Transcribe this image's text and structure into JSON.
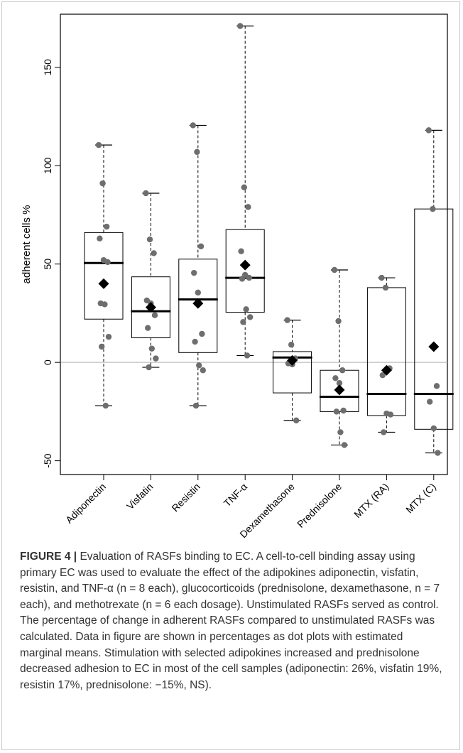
{
  "chart_data": {
    "type": "box",
    "ylabel": "adherent cells %",
    "ylim": [
      -57,
      177
    ],
    "yticks": [
      -50,
      0,
      50,
      100,
      150
    ],
    "reference_line": 0,
    "colors": {
      "point": "#6e6e6e",
      "mean": "#000000",
      "box": "#000000",
      "reference": "#bdbdbd"
    },
    "categories": [
      "Adiponectin",
      "Visfatin",
      "Resistin",
      "TNF-α",
      "Dexamethasone",
      "Prednisolone",
      "MTX (RA)",
      "MTX (C)"
    ],
    "boxes": [
      {
        "category": "Adiponectin",
        "whisker_low": -22,
        "q1": 22,
        "median": 50.5,
        "q3": 66,
        "whisker_high": 110.5,
        "mean": 40,
        "points": [
          110.5,
          91,
          69,
          63,
          52,
          51,
          30,
          29.5,
          13,
          8,
          -22
        ]
      },
      {
        "category": "Visfatin",
        "whisker_low": -2.5,
        "q1": 12.5,
        "median": 26,
        "q3": 43.5,
        "whisker_high": 86,
        "mean": 28,
        "points": [
          86,
          62.5,
          55.5,
          31.5,
          30,
          24,
          17.5,
          7,
          2,
          -2.5
        ]
      },
      {
        "category": "Resistin",
        "whisker_low": -22,
        "q1": 5,
        "median": 32,
        "q3": 52.5,
        "whisker_high": 120.5,
        "mean": 30,
        "points": [
          120.5,
          107,
          59,
          45.5,
          35.5,
          14.5,
          10.5,
          -1.5,
          -4,
          -22
        ]
      },
      {
        "category": "TNF-α",
        "whisker_low": 3.5,
        "q1": 25.5,
        "median": 43,
        "q3": 67.5,
        "whisker_high": 171,
        "mean": 49.5,
        "points": [
          171,
          89,
          79,
          56.5,
          44.5,
          43,
          42.5,
          27,
          23,
          20.5,
          3.5
        ]
      },
      {
        "category": "Dexamethasone",
        "whisker_low": -29.5,
        "q1": -15.5,
        "median": 2.5,
        "q3": 5.5,
        "whisker_high": 21.5,
        "mean": 1,
        "points": [
          21.5,
          9,
          2,
          -0.5,
          -1,
          -29.5
        ]
      },
      {
        "category": "Prednisolone",
        "whisker_low": -42,
        "q1": -25,
        "median": -17.5,
        "q3": -4,
        "whisker_high": 47,
        "mean": -14,
        "points": [
          47,
          21,
          -4,
          -8,
          -10.5,
          -24.5,
          -25,
          -35.5,
          -42
        ]
      },
      {
        "category": "MTX (RA)",
        "whisker_low": -35.5,
        "q1": -27,
        "median": -16,
        "q3": 38,
        "whisker_high": 43,
        "mean": -4,
        "points": [
          43,
          38,
          -3,
          -6.5,
          -26,
          -26.5,
          -35.5
        ]
      },
      {
        "category": "MTX (C)",
        "whisker_low": -46,
        "q1": -34,
        "median": -16,
        "q3": 78,
        "whisker_high": 118,
        "mean": 8,
        "points": [
          118,
          78,
          -12,
          -20,
          -33.5,
          -46
        ]
      }
    ]
  },
  "caption": {
    "label": "FIGURE 4 |",
    "text": " Evaluation of RASFs binding to EC. A cell-to-cell binding assay using primary EC was used to evaluate the effect of the adipokines adiponectin, visfatin, resistin, and TNF-α (n = 8 each), glucocorticoids (prednisolone, dexamethasone, n = 7 each), and methotrexate (n = 6 each dosage). Unstimulated RASFs served as control. The percentage of change in adherent RASFs compared to unstimulated RASFs was calculated. Data in figure are shown in percentages as dot plots with estimated marginal means. Stimulation with selected adipokines increased and prednisolone decreased adhesion to EC in most of the cell samples (adiponectin: 26%, visfatin 19%, resistin 17%, prednisolone: −15%, NS)."
  }
}
